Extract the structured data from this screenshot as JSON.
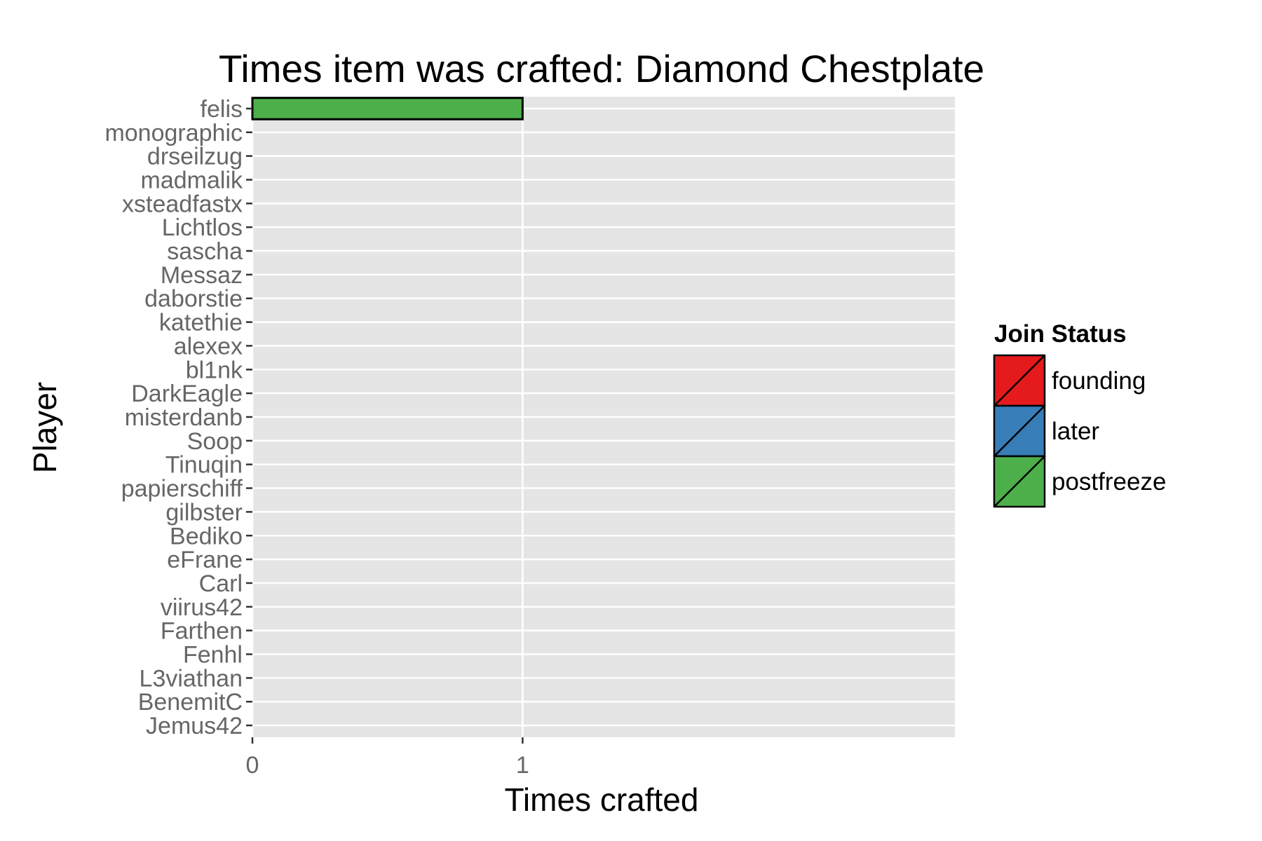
{
  "chart_data": {
    "type": "bar",
    "orientation": "horizontal",
    "title": "Times item was crafted: Diamond Chestplate",
    "xlabel": "Times crafted",
    "ylabel": "Player",
    "xlim": [
      0,
      2.6
    ],
    "x_ticks": [
      "0",
      "1"
    ],
    "grid": true,
    "categories": [
      "felis",
      "monographic",
      "drseilzug",
      "madmalik",
      "xsteadfastx",
      "Lichtlos",
      "sascha",
      "Messaz",
      "daborstie",
      "katethie",
      "alexex",
      "bl1nk",
      "DarkEagle",
      "misterdanb",
      "Soop",
      "Tinuqin",
      "papierschiff",
      "gilbster",
      "Bediko",
      "eFrane",
      "Carl",
      "viirus42",
      "Farthen",
      "Fenhl",
      "L3viathan",
      "BenemitC",
      "Jemus42"
    ],
    "values": [
      1,
      0,
      0,
      0,
      0,
      0,
      0,
      0,
      0,
      0,
      0,
      0,
      0,
      0,
      0,
      0,
      0,
      0,
      0,
      0,
      0,
      0,
      0,
      0,
      0,
      0,
      0
    ],
    "fill_group": [
      "postfreeze",
      "postfreeze",
      "postfreeze",
      "postfreeze",
      "postfreeze",
      "postfreeze",
      "postfreeze",
      "postfreeze",
      "postfreeze",
      "postfreeze",
      "postfreeze",
      "postfreeze",
      "postfreeze",
      "postfreeze",
      "postfreeze",
      "postfreeze",
      "postfreeze",
      "postfreeze",
      "postfreeze",
      "postfreeze",
      "postfreeze",
      "postfreeze",
      "postfreeze",
      "postfreeze",
      "postfreeze",
      "postfreeze",
      "postfreeze"
    ],
    "legend": {
      "title": "Join Status",
      "position": "right",
      "entries": [
        {
          "label": "founding",
          "color": "#E41A1C"
        },
        {
          "label": "later",
          "color": "#377EB8"
        },
        {
          "label": "postfreeze",
          "color": "#4DAF4A"
        }
      ]
    },
    "colors": {
      "panel_background": "#E5E5E5",
      "grid": "#FFFFFF",
      "bar_outline": "#000000"
    }
  }
}
